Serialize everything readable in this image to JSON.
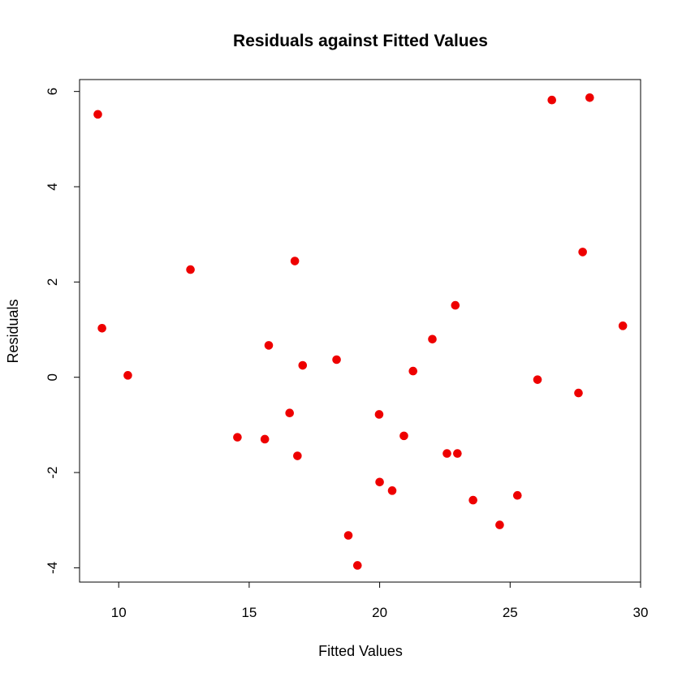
{
  "chart_data": {
    "type": "scatter",
    "title": "Residuals against Fitted Values",
    "xlabel": "Fitted Values",
    "ylabel": "Residuals",
    "xlim": [
      8.5,
      30.0
    ],
    "ylim": [
      -4.3,
      6.25
    ],
    "xticks": [
      10,
      15,
      20,
      25,
      30
    ],
    "yticks": [
      -4,
      -2,
      0,
      2,
      4,
      6
    ],
    "point_color": "#ee0000",
    "grid": false,
    "series": [
      {
        "points": [
          [
            9.2,
            5.52
          ],
          [
            9.36,
            1.03
          ],
          [
            10.35,
            0.04
          ],
          [
            12.75,
            2.26
          ],
          [
            14.55,
            -1.26
          ],
          [
            15.6,
            -1.3
          ],
          [
            15.75,
            0.67
          ],
          [
            16.55,
            -0.75
          ],
          [
            16.75,
            2.44
          ],
          [
            16.85,
            -1.65
          ],
          [
            17.05,
            0.25
          ],
          [
            18.35,
            0.37
          ],
          [
            18.8,
            -3.32
          ],
          [
            19.15,
            -3.95
          ],
          [
            19.98,
            -0.78
          ],
          [
            20.0,
            -2.2
          ],
          [
            20.48,
            -2.38
          ],
          [
            20.93,
            -1.23
          ],
          [
            21.28,
            0.13
          ],
          [
            22.02,
            0.8
          ],
          [
            22.58,
            -1.6
          ],
          [
            22.9,
            1.51
          ],
          [
            22.98,
            -1.6
          ],
          [
            23.58,
            -2.58
          ],
          [
            24.6,
            -3.1
          ],
          [
            25.28,
            -2.48
          ],
          [
            26.05,
            -0.05
          ],
          [
            26.6,
            5.82
          ],
          [
            27.62,
            -0.33
          ],
          [
            27.78,
            2.63
          ],
          [
            28.05,
            5.87
          ],
          [
            29.32,
            1.08
          ]
        ]
      }
    ]
  }
}
